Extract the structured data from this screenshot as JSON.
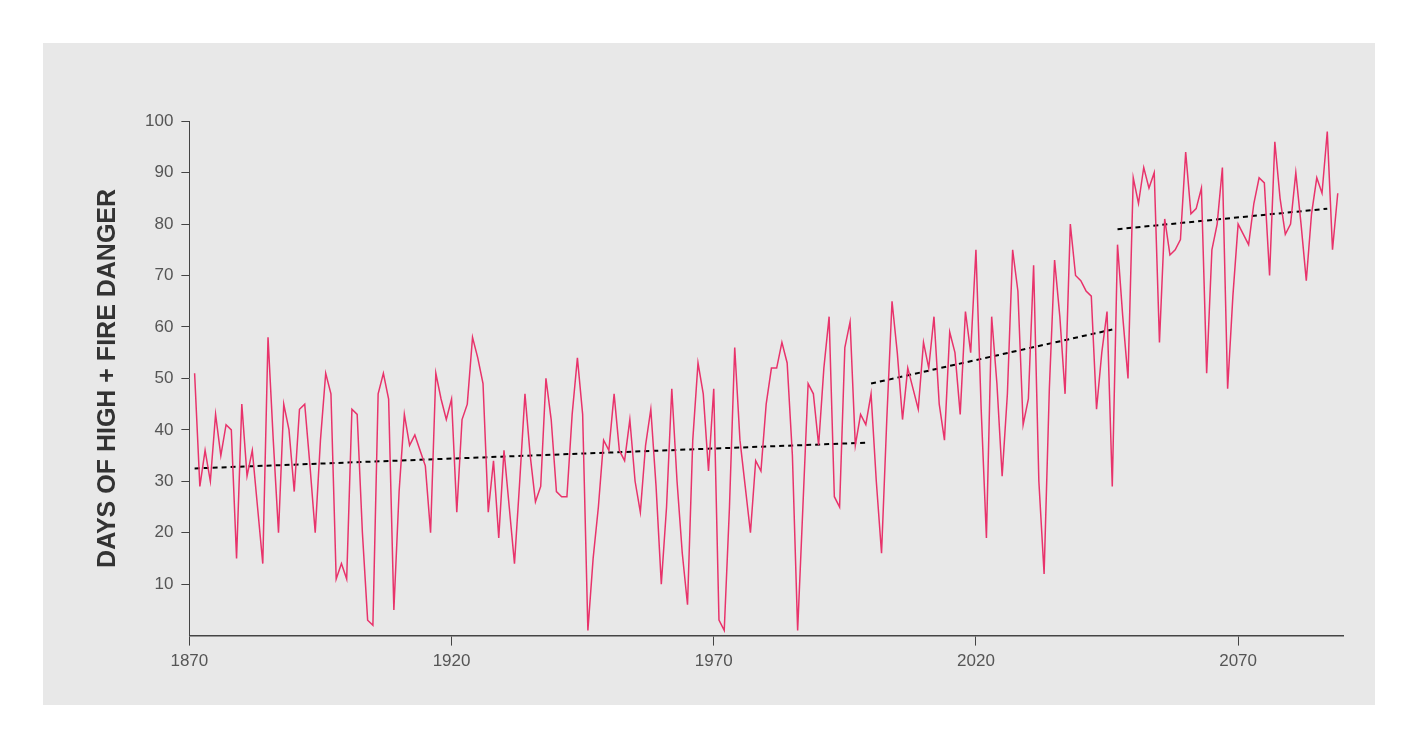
{
  "chart_data": {
    "type": "line",
    "y_label": "DAYS OF HIGH + FIRE DANGER",
    "xlim": [
      1870,
      2090
    ],
    "xticks": [
      1870,
      1920,
      1970,
      2020,
      2070
    ],
    "ylim": [
      0,
      100
    ],
    "yticks": [
      10,
      20,
      30,
      40,
      50,
      60,
      70,
      80,
      90,
      100
    ],
    "grid": false,
    "series": [
      {
        "color": "#e8336b",
        "line_style": "solid",
        "x": [
          1871,
          1872,
          1873,
          1874,
          1875,
          1876,
          1877,
          1878,
          1879,
          1880,
          1881,
          1882,
          1883,
          1884,
          1885,
          1886,
          1887,
          1888,
          1889,
          1890,
          1891,
          1892,
          1893,
          1894,
          1895,
          1896,
          1897,
          1898,
          1899,
          1900,
          1901,
          1902,
          1903,
          1904,
          1905,
          1906,
          1907,
          1908,
          1909,
          1910,
          1911,
          1912,
          1913,
          1914,
          1915,
          1916,
          1917,
          1918,
          1919,
          1920,
          1921,
          1922,
          1923,
          1924,
          1925,
          1926,
          1927,
          1928,
          1929,
          1930,
          1931,
          1932,
          1933,
          1934,
          1935,
          1936,
          1937,
          1938,
          1939,
          1940,
          1941,
          1942,
          1943,
          1944,
          1945,
          1946,
          1947,
          1948,
          1949,
          1950,
          1951,
          1952,
          1953,
          1954,
          1955,
          1956,
          1957,
          1958,
          1959,
          1960,
          1961,
          1962,
          1963,
          1964,
          1965,
          1966,
          1967,
          1968,
          1969,
          1970,
          1971,
          1972,
          1973,
          1974,
          1975,
          1976,
          1977,
          1978,
          1979,
          1980,
          1981,
          1982,
          1983,
          1984,
          1985,
          1986,
          1987,
          1988,
          1989,
          1990,
          1991,
          1992,
          1993,
          1994,
          1995,
          1996,
          1997,
          1998,
          1999,
          2000,
          2001,
          2002,
          2003,
          2004,
          2005,
          2006,
          2007,
          2008,
          2009,
          2010,
          2011,
          2012,
          2013,
          2014,
          2015,
          2016,
          2017,
          2018,
          2019,
          2020,
          2021,
          2022,
          2023,
          2024,
          2025,
          2026,
          2027,
          2028,
          2029,
          2030,
          2031,
          2032,
          2033,
          2034,
          2035,
          2036,
          2037,
          2038,
          2039,
          2040,
          2041,
          2042,
          2043,
          2044,
          2045,
          2046,
          2047,
          2048,
          2049,
          2050,
          2051,
          2052,
          2053,
          2054,
          2055,
          2056,
          2057,
          2058,
          2059,
          2060,
          2061,
          2062,
          2063,
          2064,
          2065,
          2066,
          2067,
          2068,
          2069,
          2070,
          2071,
          2072,
          2073,
          2074,
          2075,
          2076,
          2077,
          2078,
          2079,
          2080,
          2081,
          2082,
          2083,
          2084,
          2085,
          2086,
          2087,
          2088,
          2089
        ],
        "values": [
          51,
          29,
          36,
          30,
          43,
          35,
          41,
          40,
          15,
          45,
          31,
          36,
          25,
          14,
          58,
          38,
          20,
          45,
          40,
          28,
          44,
          45,
          33,
          20,
          38,
          51,
          47,
          11,
          14,
          11,
          44,
          43,
          20,
          3,
          2,
          47,
          51,
          46,
          5,
          28,
          43,
          37,
          39,
          36,
          33,
          20,
          51,
          46,
          42,
          46,
          24,
          42,
          45,
          58,
          54,
          49,
          24,
          34,
          19,
          36,
          25,
          14,
          30,
          47,
          35,
          26,
          29,
          50,
          42,
          28,
          27,
          27,
          43,
          54,
          43,
          1,
          15,
          25,
          38,
          36,
          47,
          36,
          34,
          42,
          30,
          24,
          37,
          44,
          29,
          10,
          25,
          48,
          30,
          16,
          6,
          38,
          53,
          47,
          32,
          48,
          3,
          1,
          25,
          56,
          38,
          29,
          20,
          34,
          32,
          45,
          52,
          52,
          57,
          53,
          35,
          1,
          25,
          49,
          47,
          37,
          52,
          62,
          27,
          25,
          56,
          61,
          37,
          43,
          41,
          47,
          30,
          16,
          42,
          65,
          55,
          42,
          52,
          48,
          44,
          57,
          52,
          62,
          45,
          38,
          59,
          55,
          43,
          63,
          55,
          75,
          44,
          19,
          62,
          49,
          31,
          47,
          75,
          67,
          41,
          46,
          72,
          30,
          12,
          48,
          73,
          62,
          47,
          80,
          70,
          69,
          67,
          66,
          44,
          55,
          63,
          29,
          76,
          62,
          50,
          89,
          84,
          91,
          87,
          90,
          57,
          81,
          74,
          75,
          77,
          94,
          82,
          83,
          87,
          51,
          75,
          80,
          91,
          48,
          66,
          80,
          78,
          76,
          84,
          89,
          88,
          70,
          96,
          85,
          78,
          80,
          90,
          80,
          69,
          82,
          89,
          86,
          98,
          75,
          86
        ]
      },
      {
        "color": "#000000",
        "line_style": "dashed",
        "x": [
          1871,
          1999
        ],
        "values": [
          32.5,
          37.5
        ]
      },
      {
        "color": "#000000",
        "line_style": "dashed",
        "x": [
          2000,
          2046
        ],
        "values": [
          49,
          59.5
        ]
      },
      {
        "color": "#000000",
        "line_style": "dashed",
        "x": [
          2047,
          2087
        ],
        "values": [
          79,
          83
        ]
      }
    ]
  }
}
